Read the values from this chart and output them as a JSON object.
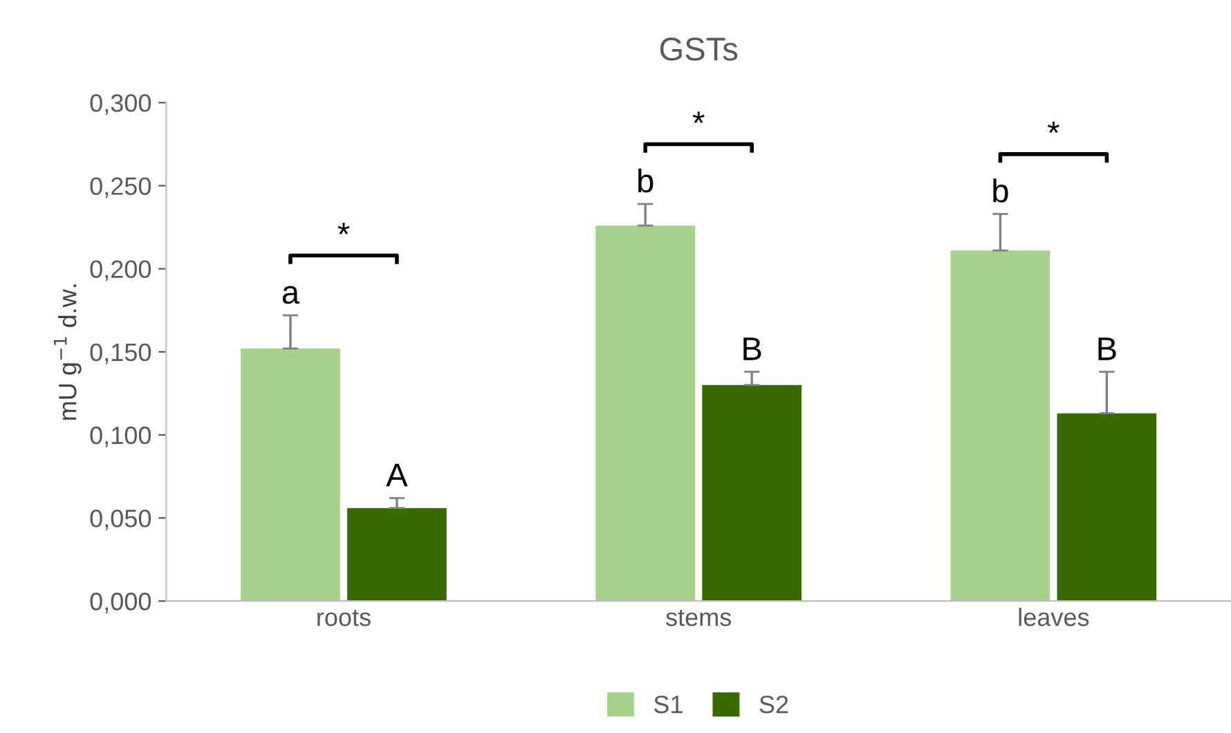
{
  "chart_data": {
    "type": "bar",
    "title": "GSTs",
    "ylabel": "mU g$^{−1}$ d.w.",
    "categories": [
      "roots",
      "stems",
      "leaves"
    ],
    "series": [
      {
        "name": "S1",
        "color": "#a9d18e",
        "values": [
          0.152,
          0.226,
          0.211
        ],
        "errors": [
          [
            0.152,
            0.172
          ],
          [
            0.226,
            0.239
          ],
          [
            0.211,
            0.233
          ]
        ],
        "value_labels": [
          "a",
          "b",
          "b"
        ]
      },
      {
        "name": "S2",
        "color": "#376b00",
        "values": [
          0.056,
          0.13,
          0.113
        ],
        "errors": [
          [
            0.056,
            0.062
          ],
          [
            0.13,
            0.138
          ],
          [
            0.113,
            0.138
          ]
        ],
        "value_labels": [
          "A",
          "B",
          "B"
        ]
      }
    ],
    "ylim": [
      0,
      0.3
    ],
    "yticks": [
      {
        "value": 0,
        "label": "0,000"
      },
      {
        "value": 0.05,
        "label": "0,050"
      },
      {
        "value": 0.1,
        "label": "0,100"
      },
      {
        "value": 0.15,
        "label": "0,150"
      },
      {
        "value": 0.2,
        "label": "0,200"
      },
      {
        "value": 0.25,
        "label": "0,250"
      },
      {
        "value": 0.3,
        "label": "0,300"
      }
    ],
    "annotations": [
      "*",
      "*",
      "*"
    ],
    "grid": false,
    "legend": "bottom"
  }
}
